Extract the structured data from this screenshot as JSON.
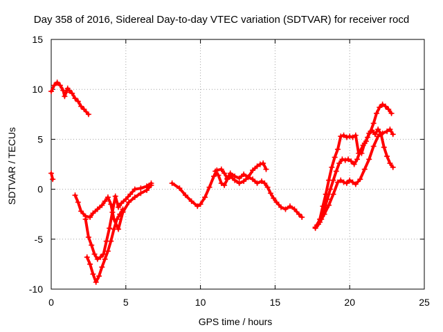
{
  "chart_data": {
    "type": "scatter",
    "title": "Day 358 of 2016, Sidereal Day-to-day VTEC variation (SDTVAR) for receiver rocd",
    "xlabel": "GPS time / hours",
    "ylabel": "SDTVAR / TECUs",
    "xlim": [
      0,
      25
    ],
    "ylim": [
      -10,
      15
    ],
    "xticks": [
      0,
      5,
      10,
      15,
      20,
      25
    ],
    "yticks": [
      -10,
      -5,
      0,
      5,
      10,
      15
    ],
    "xtick_labels": [
      "0",
      "5",
      "10",
      "15",
      "20",
      "25"
    ],
    "ytick_labels": [
      "-10",
      "-5",
      "0",
      "5",
      "10",
      "15"
    ],
    "grid": true,
    "legend": "none",
    "marker": "+",
    "color": "#ff0000",
    "series": [
      {
        "x": [
          0.0,
          0.1
        ],
        "y": [
          1.6,
          1.0
        ]
      },
      {
        "x": [
          0.0,
          0.2,
          0.4,
          0.6,
          0.8,
          0.9,
          1.0,
          1.1,
          1.2,
          1.4,
          1.6,
          1.8,
          2.0,
          2.2,
          2.5
        ],
        "y": [
          9.8,
          10.4,
          10.7,
          10.4,
          9.9,
          9.3,
          9.7,
          10.1,
          9.9,
          9.6,
          9.1,
          8.8,
          8.3,
          8.0,
          7.5
        ]
      },
      {
        "x": [
          1.6,
          1.8,
          2.0,
          2.3,
          2.6,
          2.8,
          3.1,
          3.4,
          3.6,
          3.8,
          4.0,
          4.2,
          4.5,
          4.8,
          5.2,
          5.6,
          6.0,
          6.4,
          6.7
        ],
        "y": [
          -0.6,
          -1.3,
          -2.2,
          -2.7,
          -2.8,
          -2.4,
          -2.0,
          -1.6,
          -1.2,
          -0.8,
          -1.5,
          -3.0,
          -4.0,
          -2.3,
          -1.3,
          -0.8,
          -0.4,
          -0.1,
          0.4
        ]
      },
      {
        "x": [
          2.3,
          2.5,
          2.7,
          2.9,
          3.1,
          3.3,
          3.5,
          3.7,
          3.9,
          4.1,
          4.3,
          4.5,
          4.7,
          5.0,
          5.3,
          5.6,
          6.0,
          6.4,
          6.7
        ],
        "y": [
          -3.0,
          -4.8,
          -5.6,
          -6.5,
          -7.0,
          -6.8,
          -6.5,
          -5.2,
          -3.9,
          -2.3,
          -0.7,
          -1.8,
          -1.4,
          -1.0,
          -0.5,
          0.0,
          0.1,
          0.3,
          0.6
        ]
      },
      {
        "x": [
          2.4,
          2.6,
          2.8,
          3.0,
          3.2,
          3.4,
          3.6,
          3.8,
          4.0,
          4.2,
          4.4,
          4.6,
          4.8
        ],
        "y": [
          -6.8,
          -7.5,
          -8.5,
          -9.3,
          -8.7,
          -7.8,
          -7.0,
          -6.2,
          -5.2,
          -4.0,
          -3.0,
          -2.5,
          -2.0
        ]
      },
      {
        "x": [
          8.1,
          8.6,
          9.0,
          9.4,
          9.8,
          10.0,
          10.3,
          10.6,
          10.9,
          11.1,
          11.4,
          11.6,
          11.8,
          12.0,
          12.3,
          12.6,
          12.9,
          13.2,
          13.5,
          13.8,
          14.0,
          14.2,
          14.4
        ],
        "y": [
          0.6,
          0.1,
          -0.6,
          -1.2,
          -1.7,
          -1.5,
          -0.8,
          0.2,
          1.3,
          1.9,
          2.0,
          1.6,
          1.1,
          1.6,
          1.3,
          1.1,
          1.5,
          1.2,
          1.9,
          2.3,
          2.5,
          2.6,
          2.0
        ]
      },
      {
        "x": [
          11.0,
          11.2,
          11.4,
          11.6,
          11.8,
          12.0,
          12.3,
          12.6,
          12.9,
          13.2,
          13.5,
          13.8,
          14.1,
          14.3,
          14.5,
          14.7,
          14.9,
          15.1,
          15.4,
          15.7,
          16.0,
          16.3,
          16.6,
          16.8
        ],
        "y": [
          1.8,
          1.4,
          0.6,
          0.4,
          1.0,
          1.3,
          0.9,
          0.6,
          0.8,
          1.2,
          1.0,
          0.6,
          0.8,
          0.6,
          0.2,
          -0.4,
          -0.9,
          -1.3,
          -1.8,
          -2.0,
          -1.7,
          -2.0,
          -2.5,
          -2.8
        ]
      },
      {
        "x": [
          17.7,
          18.0,
          18.3,
          18.6,
          18.9,
          19.2,
          19.4,
          19.6,
          19.8,
          20.0,
          20.2,
          20.4,
          20.7,
          21.0,
          21.3,
          21.6,
          21.9,
          22.2,
          22.5,
          22.7,
          22.9
        ],
        "y": [
          -3.8,
          -3.3,
          -2.5,
          -1.6,
          -0.5,
          0.7,
          0.9,
          0.7,
          0.6,
          0.9,
          0.7,
          0.5,
          1.0,
          2.0,
          3.0,
          4.3,
          5.3,
          5.6,
          5.8,
          6.0,
          5.5
        ]
      },
      {
        "x": [
          17.7,
          17.9,
          18.1,
          18.3,
          18.5,
          18.7,
          18.9,
          19.1,
          19.3,
          19.5,
          19.7,
          19.9,
          20.1,
          20.3,
          20.5,
          20.7,
          20.9,
          21.1,
          21.3,
          21.5,
          21.7,
          21.9,
          22.1,
          22.3,
          22.5,
          22.7,
          22.9
        ],
        "y": [
          -3.9,
          -3.5,
          -3.0,
          -2.0,
          -1.0,
          0.0,
          0.9,
          1.8,
          2.6,
          3.0,
          2.9,
          3.0,
          2.8,
          2.5,
          3.0,
          3.8,
          4.4,
          4.8,
          5.6,
          5.9,
          5.5,
          6.0,
          5.5,
          4.2,
          3.3,
          2.6,
          2.2
        ]
      },
      {
        "x": [
          17.8,
          18.0,
          18.2,
          18.4,
          18.6,
          18.8,
          19.0,
          19.2,
          19.4,
          19.6,
          19.8,
          20.0,
          20.2,
          20.4,
          20.6,
          20.8,
          21.0,
          21.2,
          21.4,
          21.6,
          21.8,
          22.0,
          22.2,
          22.4,
          22.6,
          22.8
        ],
        "y": [
          -3.6,
          -3.0,
          -1.7,
          -0.5,
          0.9,
          2.2,
          3.2,
          4.0,
          5.3,
          5.4,
          5.2,
          5.3,
          5.2,
          5.4,
          3.6,
          3.6,
          4.6,
          5.2,
          5.8,
          6.6,
          7.6,
          8.2,
          8.5,
          8.3,
          8.0,
          7.6
        ]
      }
    ]
  }
}
